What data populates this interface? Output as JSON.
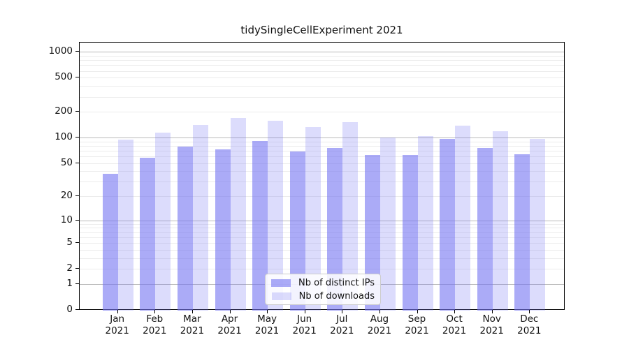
{
  "title": "tidySingleCellExperiment 2021",
  "legend": {
    "items": [
      {
        "label": "Nb of distinct IPs",
        "color": "rgba(115,115,242,0.60)"
      },
      {
        "label": "Nb of downloads",
        "color": "rgba(115,115,242,0.25)"
      }
    ]
  },
  "colors": {
    "ip_bar_composite": "#abaaf7",
    "download_bar_composite": "#dcdcfa",
    "grid_major": "#b9b9b9",
    "grid_minor": "#ececec",
    "axis": "#000000"
  },
  "chart_data": {
    "type": "bar",
    "title": "tidySingleCellExperiment 2021",
    "categories": [
      "Jan 2021",
      "Feb 2021",
      "Mar 2021",
      "Apr 2021",
      "May 2021",
      "Jun 2021",
      "Jul 2021",
      "Aug 2021",
      "Sep 2021",
      "Oct 2021",
      "Nov 2021",
      "Dec 2021"
    ],
    "series": [
      {
        "name": "Nb of distinct IPs",
        "values": [
          37,
          58,
          78,
          73,
          91,
          69,
          76,
          63,
          63,
          96,
          76,
          64
        ]
      },
      {
        "name": "Nb of downloads",
        "values": [
          94,
          115,
          141,
          171,
          159,
          132,
          153,
          100,
          105,
          137,
          119,
          97
        ]
      }
    ],
    "xlabel": "",
    "ylabel": "",
    "yscale": "log10(value+1)",
    "ytick_labels": [
      "0",
      "1",
      "2",
      "5",
      "10",
      "20",
      "50",
      "100",
      "200",
      "500",
      "1000"
    ],
    "ytick_values": [
      0,
      1,
      2,
      5,
      10,
      20,
      50,
      100,
      200,
      500,
      1000
    ],
    "minor_grid_values": [
      2,
      3,
      4,
      5,
      6,
      7,
      8,
      9,
      20,
      30,
      40,
      50,
      60,
      70,
      80,
      90,
      200,
      300,
      400,
      500,
      600,
      700,
      800,
      900
    ],
    "major_grid_values": [
      1,
      10,
      100,
      1000
    ],
    "ylim": [
      0,
      1260
    ],
    "grid": "on",
    "legend_position": "lower center"
  }
}
